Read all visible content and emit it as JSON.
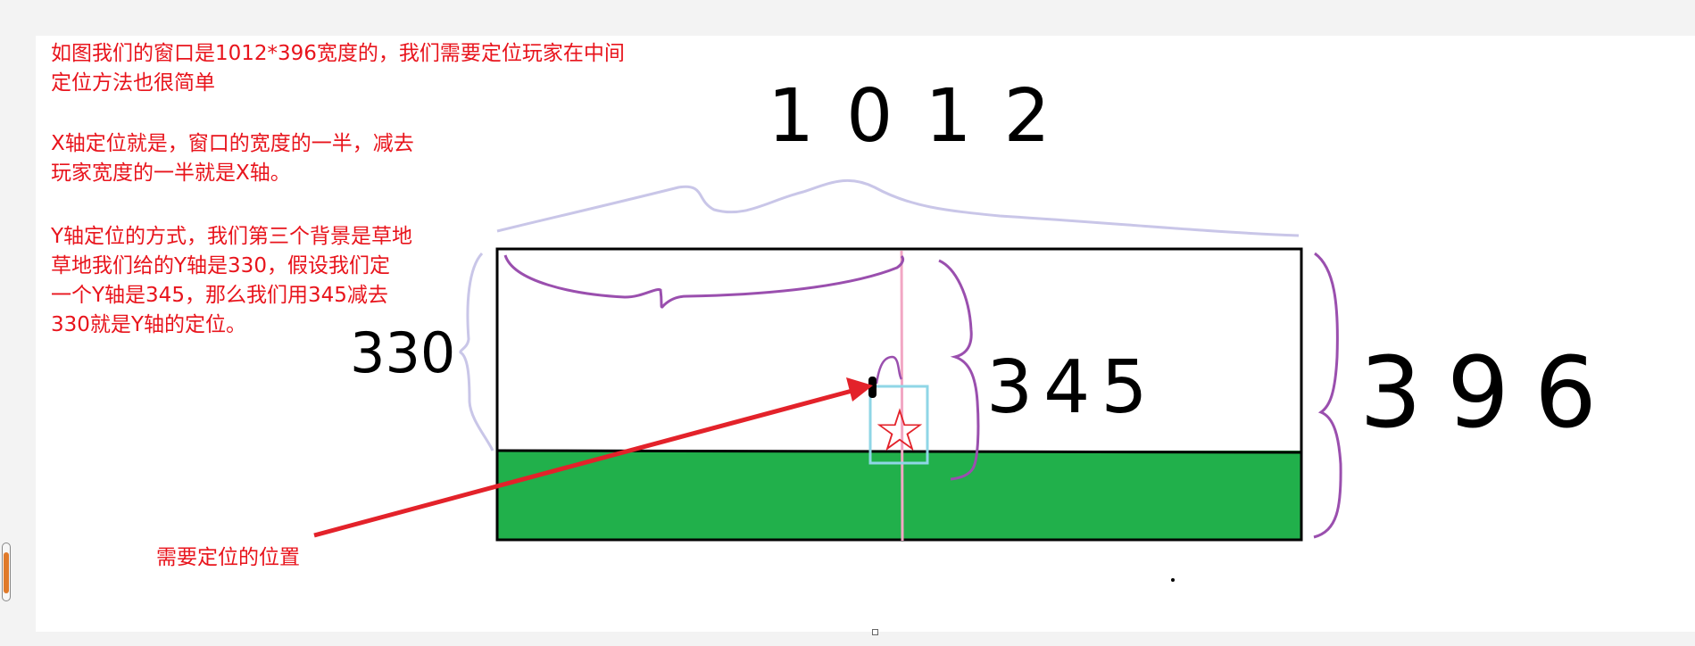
{
  "notes": [
    "如图我们的窗口是1012*396宽度的，我们需要定位玩家在中间",
    "定位方法也很简单",
    "X轴定位就是，窗口的宽度的一半，减去",
    "玩家宽度的一半就是X轴。",
    "Y轴定位的方式，我们第三个背景是草地",
    "草地我们给的Y轴是330，假设我们定",
    "一个Y轴是345，那么我们用345减去",
    "330就是Y轴的定位。"
  ],
  "annotation": {
    "target_label": "需要定位的位置"
  },
  "handwritten": {
    "width_value": "1012",
    "height_value": "396",
    "grass_y": "330",
    "player_y": "345",
    "player_glyph": "☆"
  },
  "colors": {
    "note_red": "#e8141c",
    "grass_green": "#21b04b",
    "brace_lavender": "#c9c6e8",
    "brace_purple": "#9a4fae",
    "center_line_pink": "#f2a7c4",
    "player_box_cyan": "#8fd6e6",
    "arrow_red": "#e3222a"
  },
  "icons": {
    "player": "star-icon",
    "scrollbar": "scroll-thumb"
  }
}
